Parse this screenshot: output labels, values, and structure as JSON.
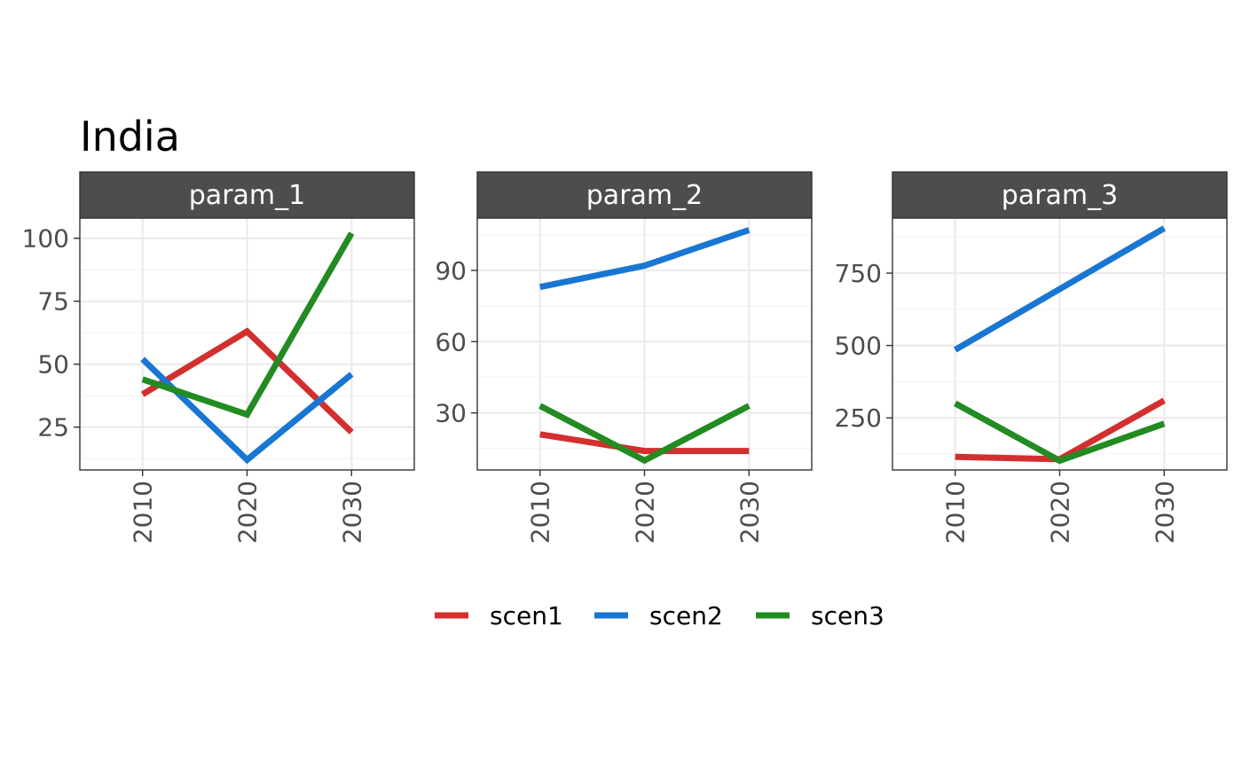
{
  "chart_data": {
    "type": "line",
    "title": "India",
    "x": [
      "2010",
      "2020",
      "2030"
    ],
    "facets": [
      {
        "name": "param_1",
        "yticks": [
          25,
          50,
          75,
          100
        ],
        "ylim": [
          8,
          108
        ],
        "series": [
          {
            "name": "scen1",
            "values": [
              38,
              63,
              23
            ]
          },
          {
            "name": "scen2",
            "values": [
              52,
              12,
              46
            ]
          },
          {
            "name": "scen3",
            "values": [
              44,
              30,
              102
            ]
          }
        ]
      },
      {
        "name": "param_2",
        "yticks": [
          30,
          60,
          90
        ],
        "ylim": [
          6,
          112
        ],
        "series": [
          {
            "name": "scen1",
            "values": [
              21,
              14,
              14
            ]
          },
          {
            "name": "scen2",
            "values": [
              83,
              92,
              107
            ]
          },
          {
            "name": "scen3",
            "values": [
              33,
              10,
              33
            ]
          }
        ]
      },
      {
        "name": "param_3",
        "yticks": [
          250,
          500,
          750
        ],
        "ylim": [
          70,
          940
        ],
        "series": [
          {
            "name": "scen1",
            "values": [
              115,
              107,
              310
            ]
          },
          {
            "name": "scen2",
            "values": [
              485,
              695,
              905
            ]
          },
          {
            "name": "scen3",
            "values": [
              300,
              102,
              230
            ]
          }
        ]
      }
    ],
    "legend": {
      "position": "bottom",
      "entries": [
        "scen1",
        "scen2",
        "scen3"
      ]
    },
    "colors": {
      "scen1": "#d32f2f",
      "scen2": "#1976d2",
      "scen3": "#228b22"
    },
    "grid": true
  }
}
